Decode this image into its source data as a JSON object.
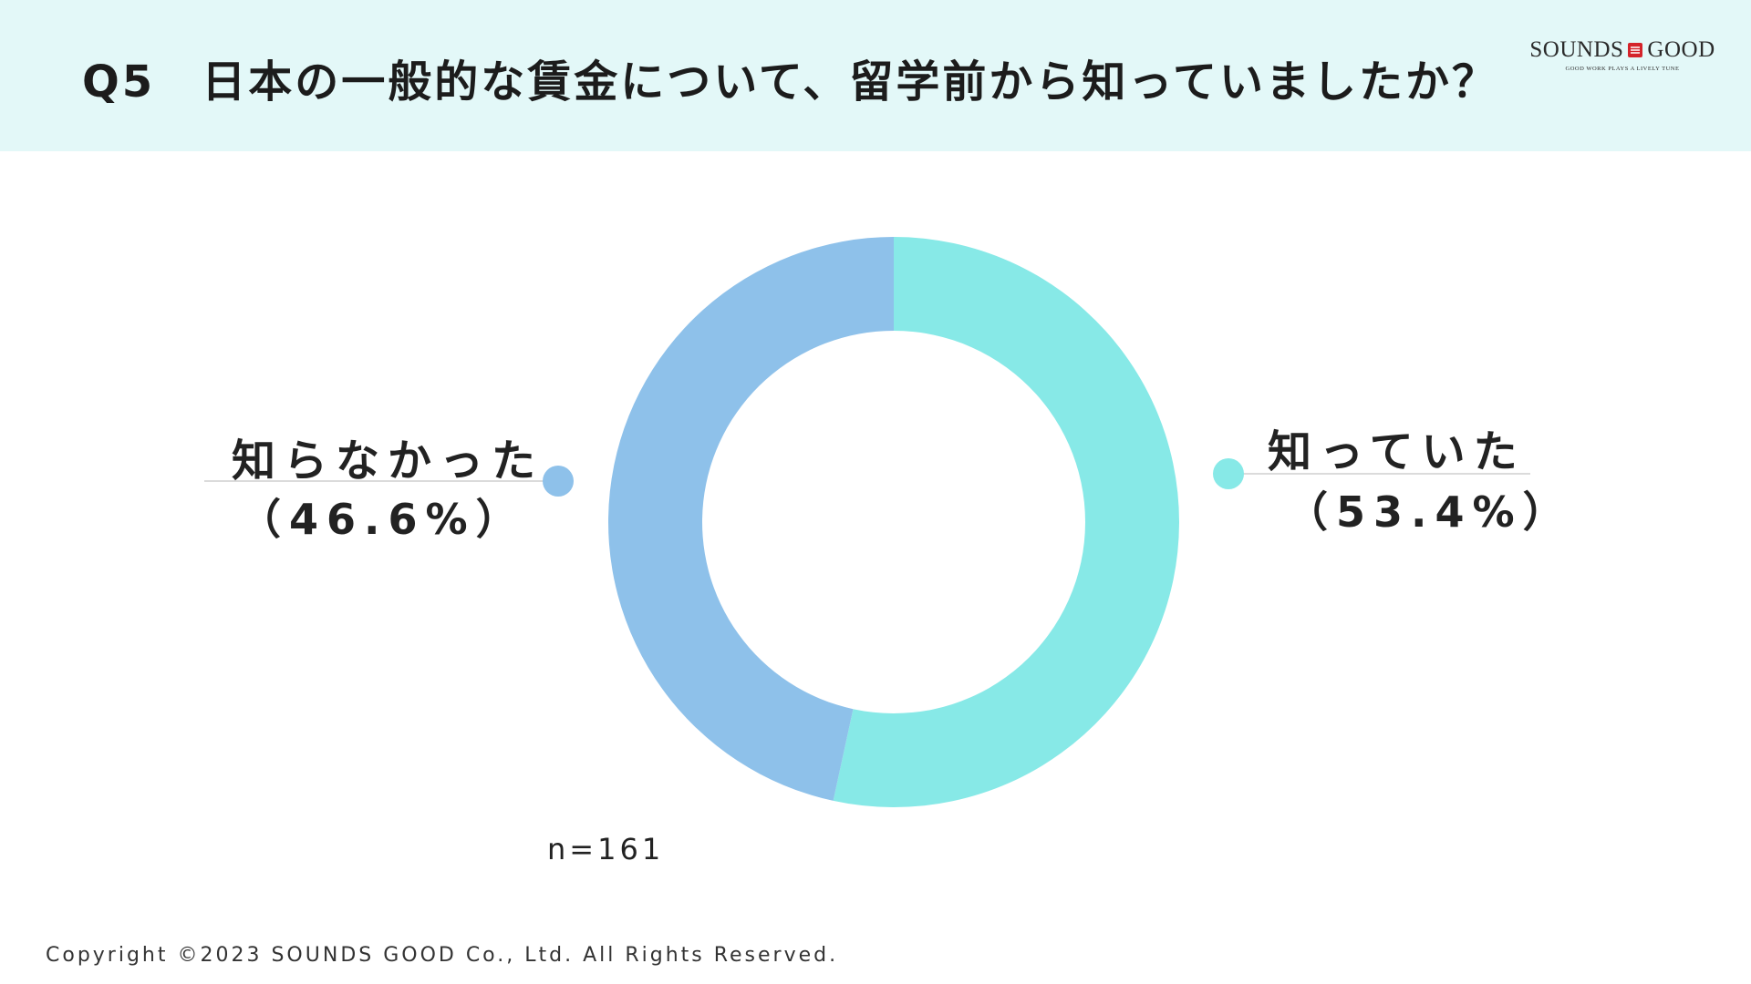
{
  "header": {
    "title": "Q5　日本の一般的な賃金について、留学前から知っていましたか？",
    "background_color": "#e3f8f8"
  },
  "logo": {
    "left_text": "SOUNDS",
    "right_text": "GOOD",
    "tagline": "GOOD WORK PLAYS A LIVELY TUNE",
    "mark_color": "#d4242b"
  },
  "chart_data": {
    "type": "pie",
    "donut": true,
    "title": "Q5　日本の一般的な賃金について、留学前から知っていましたか？",
    "slices": [
      {
        "label": "知っていた",
        "value": 53.4,
        "value_label": "（53.4%）",
        "color": "#87e9e7"
      },
      {
        "label": "知らなかった",
        "value": 46.6,
        "value_label": "（46.6%）",
        "color": "#8ec1ea"
      }
    ],
    "start": "12 o'clock",
    "direction": "clockwise",
    "sample_size_label": "n=161"
  },
  "footer": {
    "copyright": "Copyright ©2023 SOUNDS GOOD Co., Ltd. All Rights Reserved."
  }
}
